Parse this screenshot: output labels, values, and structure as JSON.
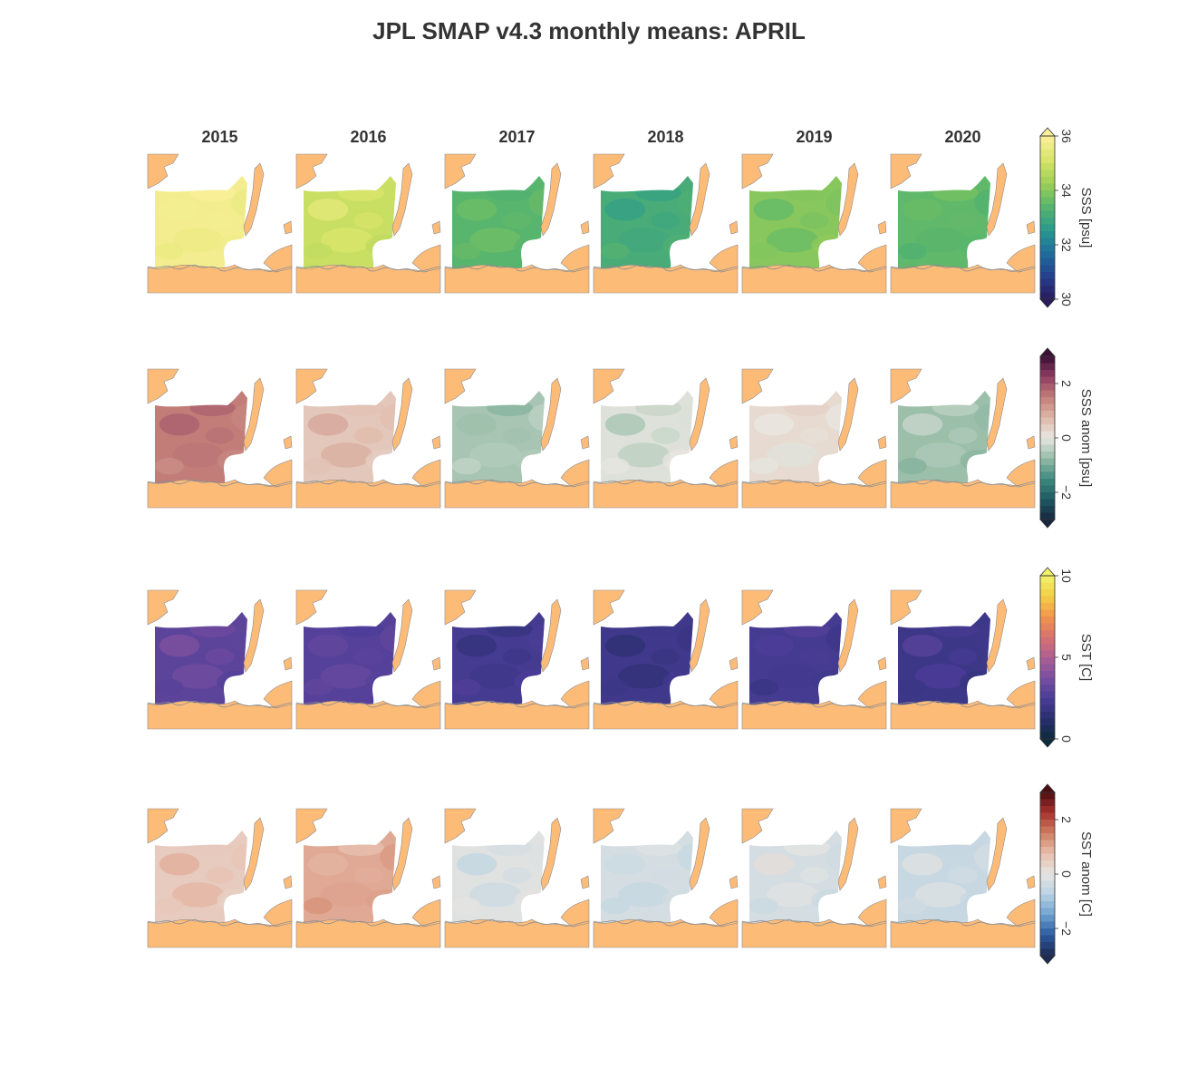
{
  "title": "JPL SMAP v4.3 monthly means: APRIL",
  "chart_data": {
    "type": "heatmap",
    "title": "JPL SMAP v4.3 monthly means: APRIL",
    "columns": [
      "2015",
      "2016",
      "2017",
      "2018",
      "2019",
      "2020"
    ],
    "rows": [
      {
        "variable": "SSS",
        "colorbar_label": "SSS [psu]",
        "range": [
          30,
          36
        ],
        "ticks": [
          30,
          32,
          34,
          36
        ],
        "tick_labels": [
          "30",
          "32",
          "34",
          "36"
        ],
        "colormap": [
          "#2a1a5e",
          "#26418f",
          "#1f6e9c",
          "#2a9a8c",
          "#5ab66c",
          "#9fd055",
          "#d9e56a",
          "#fbef9a"
        ],
        "values": [
          35.8,
          34.9,
          33.4,
          33.1,
          34.0,
          33.5
        ]
      },
      {
        "variable": "SSS anomaly",
        "colorbar_label": "SSS anom [psu]",
        "range": [
          -3,
          3
        ],
        "ticks": [
          -2,
          0,
          2
        ],
        "tick_labels": [
          "−2",
          "0",
          "2"
        ],
        "colormap": [
          "#17273f",
          "#1f5a63",
          "#3f8b7f",
          "#96bca6",
          "#e9e7e1",
          "#dfb7a6",
          "#c27d79",
          "#8f3d62",
          "#3b0f36"
        ],
        "values": [
          1.5,
          0.5,
          -0.6,
          -0.1,
          0.2,
          -0.7
        ]
      },
      {
        "variable": "SST",
        "colorbar_label": "SST [C]",
        "range": [
          0,
          10
        ],
        "ticks": [
          0,
          5,
          10
        ],
        "tick_labels": [
          "0",
          "5",
          "10"
        ],
        "colormap": [
          "#0c2a3d",
          "#2a2f6f",
          "#4a3d98",
          "#7a4fa0",
          "#ae5f93",
          "#d9726f",
          "#f2964c",
          "#f4cf45",
          "#f0f36a"
        ],
        "values": [
          3.0,
          2.8,
          2.3,
          2.1,
          2.3,
          2.0
        ]
      },
      {
        "variable": "SST anomaly",
        "colorbar_label": "SST anom [C]",
        "range": [
          -3,
          3
        ],
        "ticks": [
          -2,
          0,
          2
        ],
        "tick_labels": [
          "−2",
          "0",
          "2"
        ],
        "colormap": [
          "#1e2b54",
          "#2c5aa0",
          "#6ea2d0",
          "#b9d2e2",
          "#e6e4e2",
          "#e8bfae",
          "#cf7e62",
          "#a8322d",
          "#4d0e13"
        ],
        "values": [
          0.5,
          1.0,
          -0.1,
          -0.3,
          -0.3,
          -0.5
        ]
      }
    ]
  }
}
